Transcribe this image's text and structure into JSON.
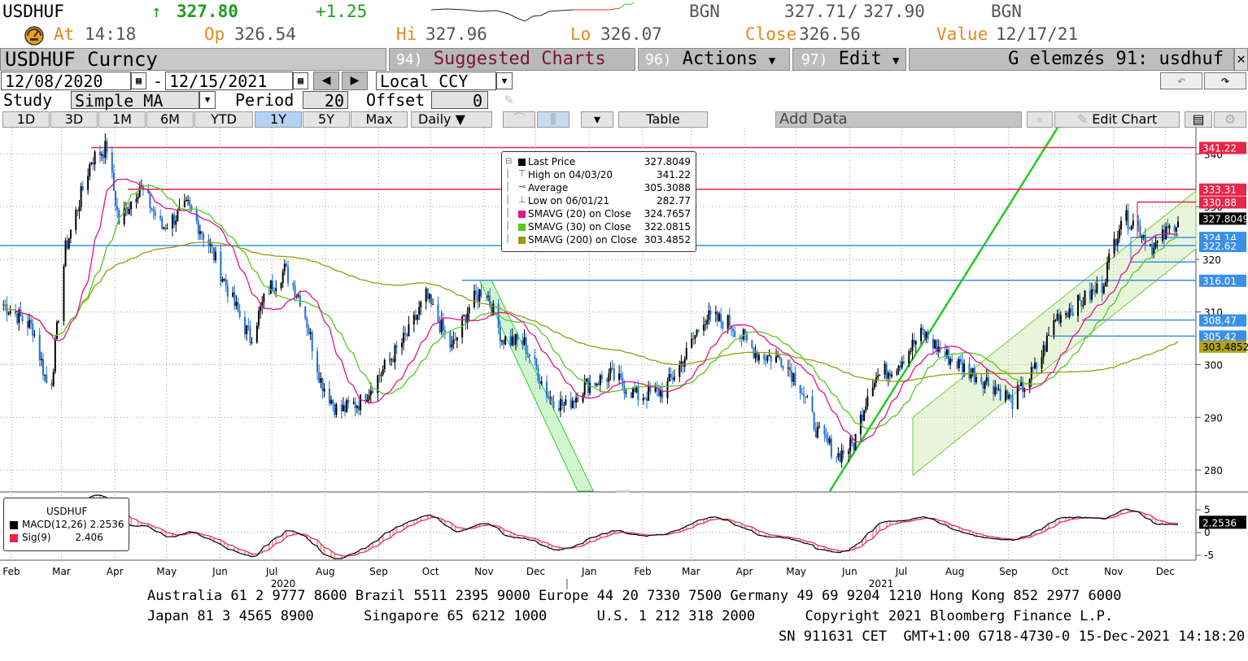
{
  "header": {
    "ticker": "USDHUF",
    "arrow": "↑",
    "last": "327.80",
    "change": "+1.25",
    "src1": "BGN",
    "bid": "327.71",
    "slash": "/",
    "ask": "327.90",
    "src2": "BGN",
    "at_label": "At",
    "at_value": "14:18",
    "op_label": "Op",
    "op_value": "326.54",
    "hi_label": "Hi",
    "hi_value": "327.96",
    "lo_label": "Lo",
    "lo_value": "326.07",
    "close_label": "Close",
    "close_value": "326.56",
    "value_label": "Value",
    "value_value": "12/17/21"
  },
  "menubar": {
    "security": "USDHUF Curncy",
    "suggested_num": "94)",
    "suggested": "Suggested Charts",
    "actions_num": "96)",
    "actions": "Actions",
    "edit_num": "97)",
    "edit": "Edit",
    "title": "G elemzés 91: usdhuf"
  },
  "controls": {
    "start_date": "12/08/2020",
    "dash": "-",
    "end_date": "12/15/2021",
    "currency": "Local CCY",
    "study_label": "Study",
    "study_value": "Simple MA",
    "period_label": "Period",
    "period_value": "20",
    "offset_label": "Offset",
    "offset_value": "0"
  },
  "timeframes": [
    "1D",
    "3D",
    "1M",
    "6M",
    "YTD",
    "1Y",
    "5Y",
    "Max"
  ],
  "selected_timeframe": "1Y",
  "toolbar": {
    "frequency": "Daily",
    "table": "Table",
    "add_data": "Add Data",
    "edit_chart": "Edit Chart"
  },
  "legend": [
    {
      "label": "Last Price",
      "value": "327.8049",
      "color": "#000000",
      "kind": "box"
    },
    {
      "label": "High on 04/03/20",
      "value": "341.22",
      "color": "#555555",
      "kind": "high"
    },
    {
      "label": "Average",
      "value": "305.3088",
      "color": "#555555",
      "kind": "avg"
    },
    {
      "label": "Low on 06/01/21",
      "value": "282.77",
      "color": "#555555",
      "kind": "low"
    },
    {
      "label": "SMAVG (20)  on Close",
      "value": "324.7657",
      "color": "#e0148c",
      "kind": "box"
    },
    {
      "label": "SMAVG (30)  on Close",
      "value": "322.0815",
      "color": "#55c81e",
      "kind": "box"
    },
    {
      "label": "SMAVG (200)  on Close",
      "value": "303.4852",
      "color": "#9a9a10",
      "kind": "box"
    }
  ],
  "macd_box": {
    "title": "USDHUF",
    "macd_label": "MACD(12,26)",
    "macd_value": "2.2536",
    "sig_label": "Sig(9)",
    "sig_value": "2.406"
  },
  "axis": {
    "price_ticks": [
      "340",
      "330",
      "320",
      "310",
      "300",
      "290",
      "280"
    ],
    "macd_ticks": [
      "5",
      "0",
      "-5"
    ],
    "months": [
      "Feb",
      "Mar",
      "Apr",
      "May",
      "Jun",
      "Jul",
      "Aug",
      "Sep",
      "Oct",
      "Nov",
      "Dec",
      "Jan",
      "Feb",
      "Mar",
      "Apr",
      "May",
      "Jun",
      "Jul",
      "Aug",
      "Sep",
      "Oct",
      "Nov",
      "Dec"
    ],
    "years": [
      "2020",
      "2021"
    ]
  },
  "price_tags": [
    {
      "text": "341.22",
      "bg": "#e8264a",
      "fg": "#ffffff"
    },
    {
      "text": "333.31",
      "bg": "#e8264a",
      "fg": "#ffffff"
    },
    {
      "text": "330.88",
      "bg": "#e8264a",
      "fg": "#ffffff"
    },
    {
      "text": "327.8049",
      "bg": "#000000",
      "fg": "#ffffff"
    },
    {
      "text": "324.14",
      "bg": "#3a8fe8",
      "fg": "#ffffff"
    },
    {
      "text": "322.62",
      "bg": "#3a8fe8",
      "fg": "#ffffff"
    },
    {
      "text": "320",
      "bg": "#ffffff",
      "fg": "#000000"
    },
    {
      "text": "316.01",
      "bg": "#3a8fe8",
      "fg": "#ffffff"
    },
    {
      "text": "308.47",
      "bg": "#3a8fe8",
      "fg": "#ffffff"
    },
    {
      "text": "305.42",
      "bg": "#3a8fe8",
      "fg": "#ffffff"
    },
    {
      "text": "303.4852",
      "bg": "#b1a31c",
      "fg": "#000000"
    }
  ],
  "macd_tag": "2.2536",
  "footer": {
    "line1": "Australia 61 2 9777 8600 Brazil 5511 2395 9000 Europe 44 20 7330 7500 Germany 49 69 9204 1210 Hong Kong 852 2977 6000",
    "line2": "Japan 81 3 4565 8900      Singapore 65 6212 1000      U.S. 1 212 318 2000      Copyright 2021 Bloomberg Finance L.P.",
    "line3": "SN 911631 CET  GMT+1:00 G718-4730-0 15-Dec-2021 14:18:20"
  },
  "chart_data": {
    "type": "candlestick",
    "x_range": [
      "2020-02-01",
      "2021-12-15"
    ],
    "ylim": [
      276,
      345
    ],
    "price_series_approx": [
      [
        "2020-02-01",
        312
      ],
      [
        "2020-02-20",
        307
      ],
      [
        "2020-03-01",
        294
      ],
      [
        "2020-03-10",
        322
      ],
      [
        "2020-03-25",
        339
      ],
      [
        "2020-04-03",
        341.22
      ],
      [
        "2020-04-10",
        327
      ],
      [
        "2020-04-22",
        334
      ],
      [
        "2020-05-05",
        326
      ],
      [
        "2020-05-20",
        330
      ],
      [
        "2020-06-01",
        323
      ],
      [
        "2020-06-15",
        312
      ],
      [
        "2020-06-25",
        305
      ],
      [
        "2020-07-05",
        314
      ],
      [
        "2020-07-15",
        318
      ],
      [
        "2020-07-25",
        312
      ],
      [
        "2020-08-05",
        297
      ],
      [
        "2020-08-15",
        291
      ],
      [
        "2020-08-28",
        293
      ],
      [
        "2020-09-10",
        299
      ],
      [
        "2020-09-25",
        306
      ],
      [
        "2020-10-05",
        313
      ],
      [
        "2020-10-20",
        303
      ],
      [
        "2020-10-30",
        311
      ],
      [
        "2020-11-08",
        315
      ],
      [
        "2020-11-18",
        305
      ],
      [
        "2020-12-01",
        304
      ],
      [
        "2020-12-15",
        294
      ],
      [
        "2020-12-25",
        292
      ],
      [
        "2021-01-05",
        296
      ],
      [
        "2021-01-20",
        298
      ],
      [
        "2021-02-05",
        294
      ],
      [
        "2021-02-20",
        295
      ],
      [
        "2021-03-05",
        302
      ],
      [
        "2021-03-15",
        309
      ],
      [
        "2021-03-30",
        308
      ],
      [
        "2021-04-15",
        302
      ],
      [
        "2021-04-30",
        301
      ],
      [
        "2021-05-10",
        296
      ],
      [
        "2021-05-20",
        287
      ],
      [
        "2021-06-01",
        282.77
      ],
      [
        "2021-06-10",
        285
      ],
      [
        "2021-06-20",
        297
      ],
      [
        "2021-07-05",
        300
      ],
      [
        "2021-07-20",
        306
      ],
      [
        "2021-08-01",
        302
      ],
      [
        "2021-08-15",
        299
      ],
      [
        "2021-08-30",
        296
      ],
      [
        "2021-09-10",
        293
      ],
      [
        "2021-09-25",
        300
      ],
      [
        "2021-10-05",
        309
      ],
      [
        "2021-10-20",
        312
      ],
      [
        "2021-11-01",
        315
      ],
      [
        "2021-11-12",
        328
      ],
      [
        "2021-11-20",
        327
      ],
      [
        "2021-12-01",
        322
      ],
      [
        "2021-12-15",
        327.8
      ]
    ],
    "horizontal_levels": [
      341.22,
      333.31,
      330.88,
      324.14,
      322.62,
      316.01,
      308.47,
      305.42
    ],
    "legend_placement": "top-center"
  }
}
